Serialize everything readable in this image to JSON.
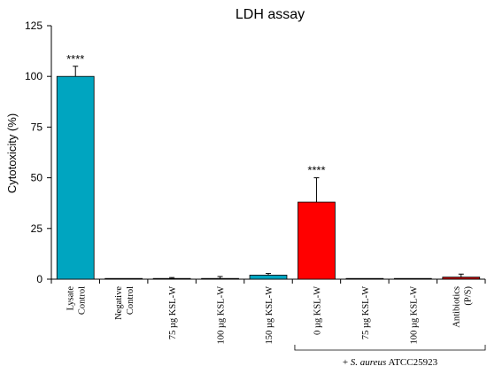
{
  "chart_data": {
    "type": "bar",
    "title": "LDH assay",
    "xlabel": "",
    "ylabel": "Cytotoxicity (%)",
    "ylim": [
      0,
      125
    ],
    "yticks": [
      0,
      25,
      50,
      75,
      100,
      125
    ],
    "categories": [
      [
        "Lysate",
        "Control"
      ],
      [
        "Negative",
        "Control"
      ],
      [
        "75 µg KSL-W"
      ],
      [
        "100 µg KSL-W"
      ],
      [
        "150 µg KSL-W"
      ],
      [
        "0 µg KSL-W"
      ],
      [
        "75 µg KSL-W"
      ],
      [
        "100 µg KSL-W"
      ],
      [
        "Antibiotics",
        "(P/S)"
      ]
    ],
    "values": [
      100,
      0.1,
      0.2,
      0.3,
      2.0,
      38,
      0.1,
      0.1,
      1.0
    ],
    "errors": [
      5,
      0,
      0.6,
      1.0,
      0.8,
      12,
      0,
      0,
      1.5
    ],
    "bar_colors": [
      "#00A5C0",
      "#00A5C0",
      "#00A5C0",
      "#00A5C0",
      "#00A5C0",
      "#FF0000",
      "#FF0000",
      "#FF0000",
      "#C00000"
    ],
    "annotations": [
      {
        "bar": 0,
        "text": "****"
      },
      {
        "bar": 5,
        "text": "****"
      }
    ],
    "group_bracket": {
      "from_bar": 5,
      "to_bar": 8,
      "label_prefix": "+ ",
      "label_italic": "S. aureus",
      "label_suffix": " ATCC25923"
    },
    "grid": false,
    "legend": "none"
  }
}
